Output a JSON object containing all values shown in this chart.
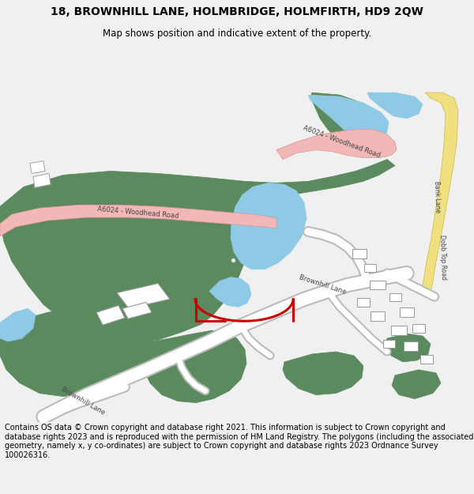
{
  "title": "18, BROWNHILL LANE, HOLMBRIDGE, HOLMFIRTH, HD9 2QW",
  "subtitle": "Map shows position and indicative extent of the property.",
  "footer": "Contains OS data © Crown copyright and database right 2021. This information is subject to Crown copyright and database rights 2023 and is reproduced with the permission of HM Land Registry. The polygons (including the associated geometry, namely x, y co-ordinates) are subject to Crown copyright and database rights 2023 Ordnance Survey 100026316.",
  "bg_color": "#f0f0f0",
  "map_bg": "#ffffff",
  "green_color": "#5a8a5e",
  "blue_color": "#8ecae6",
  "pink_road": "#f2b8b8",
  "yellow_road": "#f0e080",
  "red_boundary": "#cc0000",
  "white": "#ffffff",
  "light_gray": "#d8d8d8",
  "building_gray": "#c0c0c0",
  "title_fontsize": 10,
  "subtitle_fontsize": 8.5,
  "footer_fontsize": 7.0,
  "road_label_size": 6.0,
  "road_label_color": "#444444"
}
